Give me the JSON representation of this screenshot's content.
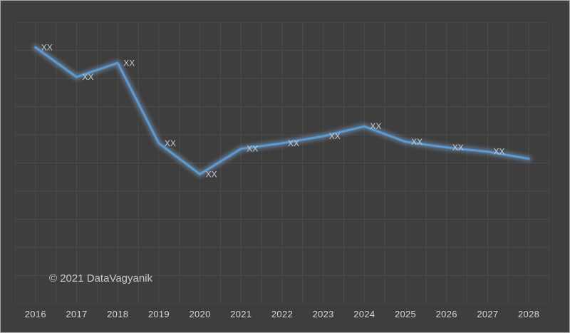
{
  "figure": {
    "watermark": "© 2021 DataVagyanik"
  },
  "chart_data": {
    "type": "line",
    "title": "",
    "xlabel": "",
    "ylabel": "",
    "legend": "none",
    "grid": true,
    "categories": [
      "2016",
      "2017",
      "2018",
      "2019",
      "2020",
      "2021",
      "2022",
      "2023",
      "2024",
      "2025",
      "2026",
      "2027",
      "2028"
    ],
    "values": [
      91,
      80.5,
      85.5,
      57,
      46,
      55,
      57,
      59.5,
      63,
      57.5,
      55.5,
      54,
      51.5
    ],
    "point_labels": [
      "XX",
      "XX",
      "XX",
      "XX",
      "XX",
      "XX",
      "XX",
      "XX",
      "XX",
      "XX",
      "XX",
      "XX",
      ""
    ],
    "ylim": [
      0,
      100
    ],
    "line_color": "#5b9bd5",
    "glow_color": "#8ab8e8",
    "label_color": "#c9c9c9",
    "axis_label_color": "#d6d6d6",
    "background_color": "#3e3e3e",
    "gridline_color": "#4c4c4c"
  }
}
